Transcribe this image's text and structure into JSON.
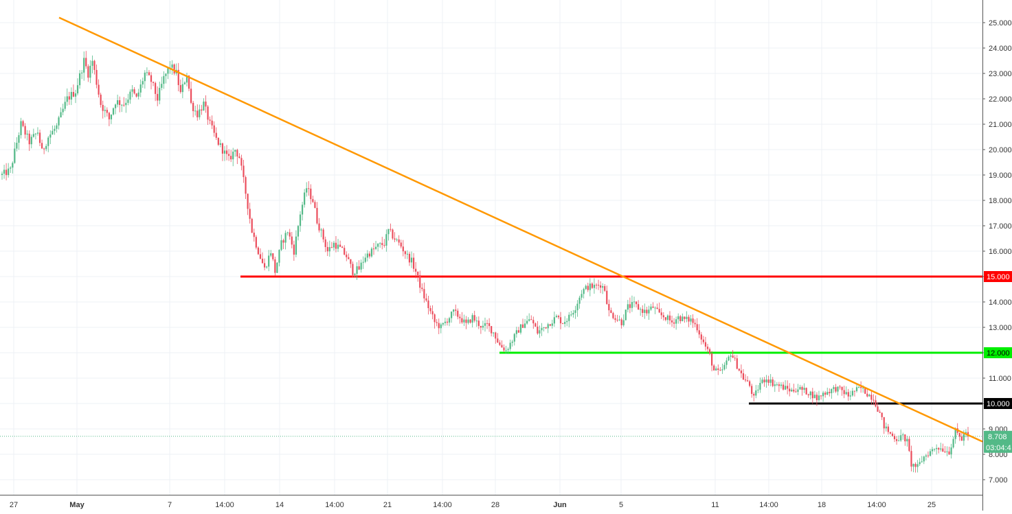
{
  "chart_data": {
    "type": "candlestick",
    "title": "",
    "ylim": [
      6.5,
      25.75
    ],
    "grid": true,
    "y_ticks": [
      "25.000",
      "24.000",
      "23.000",
      "22.000",
      "21.000",
      "20.000",
      "19.000",
      "18.000",
      "17.000",
      "16.000",
      "15.000",
      "14.000",
      "13.000",
      "12.000",
      "11.000",
      "10.000",
      "9.000",
      "8.000",
      "7.000"
    ],
    "x_ticks": [
      "27",
      "May",
      "7",
      "14:00",
      "14",
      "14:00",
      "21",
      "14:00",
      "28",
      "Jun",
      "5",
      "11",
      "14:00",
      "18",
      "14:00",
      "25"
    ],
    "horizontal_levels": [
      {
        "value": 15,
        "label": "15.000",
        "color": "#ff0000"
      },
      {
        "value": 12,
        "label": "12.000",
        "color": "#00ee00"
      },
      {
        "value": 10,
        "label": "10.000",
        "color": "#000000"
      }
    ],
    "trendline": {
      "color": "#ff9800",
      "start_value": 25.2,
      "end_value": 8.5
    },
    "last_price": {
      "value": 8.708,
      "label": "8.708",
      "countdown": "03:04:4",
      "color": "#53b987"
    },
    "colors": {
      "up": "#53b987",
      "down": "#eb4d5c",
      "grid": "#eef1f5"
    },
    "anchors": [
      [
        0,
        19.0
      ],
      [
        4,
        19.2
      ],
      [
        9,
        21.0
      ],
      [
        13,
        20.3
      ],
      [
        17,
        20.7
      ],
      [
        19,
        19.9
      ],
      [
        22,
        20.5
      ],
      [
        26,
        20.9
      ],
      [
        31,
        22.0
      ],
      [
        35,
        22.3
      ],
      [
        39,
        23.5
      ],
      [
        41,
        23.0
      ],
      [
        43,
        23.5
      ],
      [
        47,
        21.8
      ],
      [
        51,
        21.2
      ],
      [
        54,
        21.9
      ],
      [
        58,
        21.8
      ],
      [
        62,
        22.3
      ],
      [
        64,
        22.0
      ],
      [
        68,
        23.0
      ],
      [
        71,
        22.7
      ],
      [
        74,
        22.0
      ],
      [
        77,
        22.8
      ],
      [
        80,
        23.3
      ],
      [
        83,
        23.0
      ],
      [
        85,
        22.2
      ],
      [
        88,
        23.0
      ],
      [
        90,
        21.8
      ],
      [
        93,
        21.4
      ],
      [
        96,
        21.8
      ],
      [
        99,
        21.0
      ],
      [
        102,
        20.4
      ],
      [
        105,
        20.0
      ],
      [
        108,
        19.6
      ],
      [
        111,
        20.0
      ],
      [
        113,
        19.7
      ],
      [
        116,
        18.3
      ],
      [
        119,
        16.8
      ],
      [
        122,
        16.0
      ],
      [
        125,
        15.3
      ],
      [
        128,
        16.0
      ],
      [
        130,
        15.2
      ],
      [
        133,
        16.3
      ],
      [
        136,
        16.8
      ],
      [
        139,
        16.0
      ],
      [
        142,
        17.5
      ],
      [
        145,
        18.5
      ],
      [
        148,
        18.0
      ],
      [
        150,
        17.2
      ],
      [
        153,
        16.5
      ],
      [
        155,
        16.0
      ],
      [
        158,
        16.3
      ],
      [
        161,
        16.1
      ],
      [
        164,
        15.8
      ],
      [
        167,
        15.2
      ],
      [
        170,
        15.3
      ],
      [
        173,
        15.8
      ],
      [
        176,
        16.0
      ],
      [
        179,
        16.2
      ],
      [
        182,
        16.3
      ],
      [
        184,
        16.8
      ],
      [
        187,
        16.5
      ],
      [
        190,
        16.2
      ],
      [
        193,
        15.8
      ],
      [
        195,
        15.6
      ],
      [
        197,
        15.2
      ],
      [
        200,
        14.4
      ],
      [
        203,
        13.8
      ],
      [
        206,
        13.2
      ],
      [
        209,
        13.0
      ],
      [
        212,
        13.3
      ],
      [
        215,
        13.6
      ],
      [
        218,
        13.4
      ],
      [
        221,
        13.1
      ],
      [
        224,
        13.4
      ],
      [
        226,
        13.2
      ],
      [
        229,
        13.0
      ],
      [
        231,
        13.1
      ],
      [
        234,
        12.8
      ],
      [
        237,
        12.3
      ],
      [
        240,
        12.1
      ],
      [
        243,
        12.5
      ],
      [
        246,
        12.9
      ],
      [
        249,
        13.2
      ],
      [
        252,
        13.3
      ],
      [
        255,
        12.8
      ],
      [
        258,
        13.0
      ],
      [
        261,
        13.2
      ],
      [
        264,
        13.4
      ],
      [
        267,
        13.2
      ],
      [
        270,
        13.4
      ],
      [
        273,
        13.8
      ],
      [
        276,
        14.4
      ],
      [
        279,
        14.6
      ],
      [
        282,
        14.6
      ],
      [
        285,
        14.7
      ],
      [
        287,
        14.5
      ],
      [
        289,
        13.6
      ],
      [
        292,
        13.4
      ],
      [
        295,
        13.2
      ],
      [
        298,
        13.8
      ],
      [
        301,
        13.9
      ],
      [
        304,
        13.7
      ],
      [
        307,
        13.6
      ],
      [
        310,
        13.8
      ],
      [
        313,
        13.5
      ],
      [
        316,
        13.4
      ],
      [
        319,
        13.2
      ],
      [
        322,
        13.4
      ],
      [
        325,
        13.3
      ],
      [
        328,
        13.3
      ],
      [
        331,
        13.0
      ],
      [
        334,
        12.4
      ],
      [
        337,
        11.9
      ],
      [
        339,
        11.3
      ],
      [
        342,
        11.2
      ],
      [
        345,
        11.6
      ],
      [
        347,
        12.0
      ],
      [
        350,
        11.5
      ],
      [
        353,
        11.0
      ],
      [
        356,
        10.7
      ],
      [
        358,
        10.2
      ],
      [
        361,
        10.8
      ],
      [
        364,
        11.0
      ],
      [
        367,
        10.8
      ],
      [
        370,
        10.7
      ],
      [
        373,
        10.6
      ],
      [
        376,
        10.5
      ],
      [
        379,
        10.6
      ],
      [
        382,
        10.5
      ],
      [
        385,
        10.4
      ],
      [
        388,
        10.2
      ],
      [
        391,
        10.4
      ],
      [
        394,
        10.5
      ],
      [
        397,
        10.6
      ],
      [
        400,
        10.5
      ],
      [
        403,
        10.3
      ],
      [
        406,
        10.5
      ],
      [
        409,
        10.6
      ],
      [
        412,
        10.4
      ],
      [
        415,
        10.2
      ],
      [
        418,
        9.6
      ],
      [
        420,
        9.1
      ],
      [
        423,
        8.8
      ],
      [
        426,
        8.6
      ],
      [
        429,
        8.7
      ],
      [
        431,
        8.5
      ],
      [
        433,
        7.6
      ],
      [
        436,
        7.5
      ],
      [
        439,
        7.9
      ],
      [
        442,
        8.1
      ],
      [
        445,
        8.3
      ],
      [
        448,
        8.2
      ],
      [
        451,
        8.1
      ],
      [
        454,
        8.9
      ],
      [
        457,
        8.6
      ],
      [
        459,
        8.9
      ],
      [
        460,
        8.708
      ]
    ]
  }
}
